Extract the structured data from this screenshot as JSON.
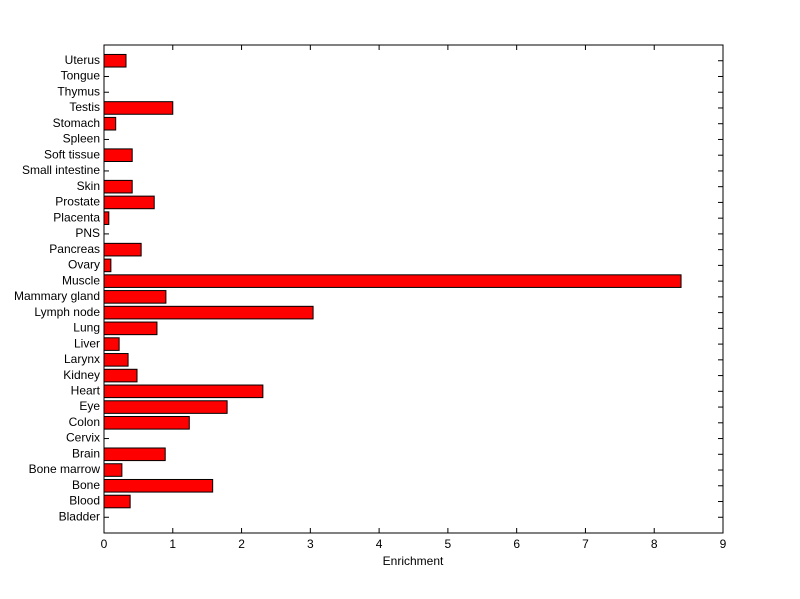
{
  "chart_data": {
    "type": "barh",
    "x_label": "Enrichment",
    "categories": [
      "Bladder",
      "Blood",
      "Bone",
      "Bone marrow",
      "Brain",
      "Cervix",
      "Colon",
      "Eye",
      "Heart",
      "Kidney",
      "Larynx",
      "Liver",
      "Lung",
      "Lymph node",
      "Mammary gland",
      "Muscle",
      "Ovary",
      "Pancreas",
      "PNS",
      "Placenta",
      "Prostate",
      "Skin",
      "Small intestine",
      "Soft tissue",
      "Spleen",
      "Stomach",
      "Testis",
      "Thymus",
      "Tongue",
      "Uterus"
    ],
    "values": [
      0,
      0.38,
      1.58,
      0.26,
      0.89,
      0,
      1.24,
      1.79,
      2.31,
      0.48,
      0.35,
      0.22,
      0.77,
      3.04,
      0.9,
      8.39,
      0.1,
      0.54,
      0,
      0.07,
      0.73,
      0.41,
      0,
      0.41,
      0,
      0.17,
      1.0,
      0,
      0,
      0.32
    ],
    "color": "#ff0000",
    "xlim": [
      0,
      9
    ],
    "xticks": [
      0,
      1,
      2,
      3,
      4,
      5,
      6,
      7,
      8,
      9
    ]
  }
}
